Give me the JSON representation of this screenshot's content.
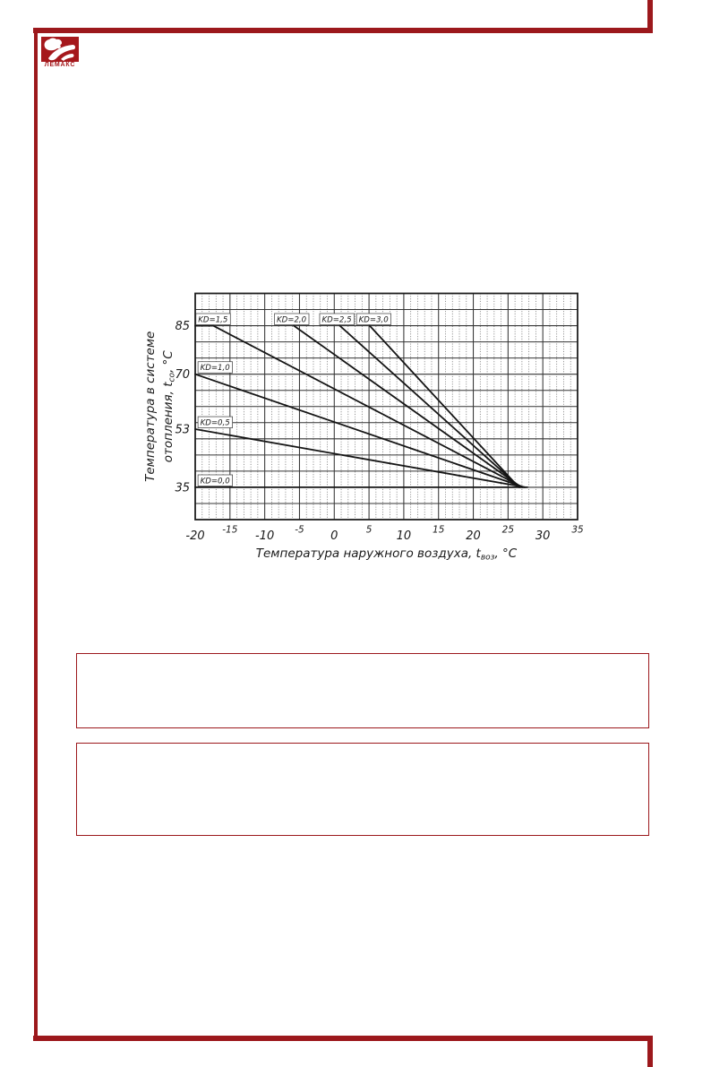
{
  "page": {
    "background": "#ffffff",
    "frame_color": "#9c181c",
    "box_border_color": "#9c181c"
  },
  "logo": {
    "brand": "ЛЕМАКС",
    "icon": "lemax-lion-icon",
    "color": "#a5181c"
  },
  "chart_data": {
    "type": "line",
    "title": "",
    "xlabel_parts": [
      "Температура наружного воздуха, t",
      "воз",
      ", °С"
    ],
    "ylabel_line1": "Температура в системе",
    "ylabel_line2_parts": [
      "отопления, t",
      "со",
      ", °С"
    ],
    "xlim": [
      -20,
      35
    ],
    "ylim": [
      25,
      95
    ],
    "x_major_step": 5,
    "x_minor_step": 1,
    "y_major_step": 5,
    "grid": true,
    "legend_position": "inline-curve-labels",
    "x_ticks": [
      -20,
      -15,
      -10,
      -5,
      0,
      5,
      10,
      15,
      20,
      25,
      30,
      35
    ],
    "y_ticks": [
      85,
      70,
      53,
      35
    ],
    "convergence_point": [
      26.8,
      35
    ],
    "line_color": "#151515",
    "series": [
      {
        "name": "KD=0,0",
        "points": [
          [
            -20,
            35
          ],
          [
            27.8,
            35
          ]
        ],
        "label_pos": [
          -19.6,
          35.4
        ]
      },
      {
        "name": "KD=0,5",
        "points": [
          [
            -20,
            53
          ],
          [
            27.5,
            35
          ]
        ],
        "label_pos": [
          -19.6,
          53.4
        ]
      },
      {
        "name": "KD=1,0",
        "points": [
          [
            -20,
            70
          ],
          [
            27.3,
            35
          ]
        ],
        "label_pos": [
          -19.6,
          70.4
        ]
      },
      {
        "name": "KD=1,5",
        "points": [
          [
            -20,
            85
          ],
          [
            -17.4,
            85
          ],
          [
            27.1,
            35
          ]
        ],
        "label_pos": [
          -19.9,
          85.3
        ]
      },
      {
        "name": "KD=2,0",
        "points": [
          [
            -5.8,
            85
          ],
          [
            26.9,
            35
          ]
        ],
        "label_pos": [
          -8.6,
          85.3
        ]
      },
      {
        "name": "KD=2,5",
        "points": [
          [
            0.8,
            85
          ],
          [
            26.7,
            35
          ]
        ],
        "label_pos": [
          -2.1,
          85.3
        ]
      },
      {
        "name": "KD=3,0",
        "points": [
          [
            5.1,
            85
          ],
          [
            26.55,
            35
          ]
        ],
        "label_pos": [
          3.2,
          85.3
        ]
      }
    ]
  }
}
